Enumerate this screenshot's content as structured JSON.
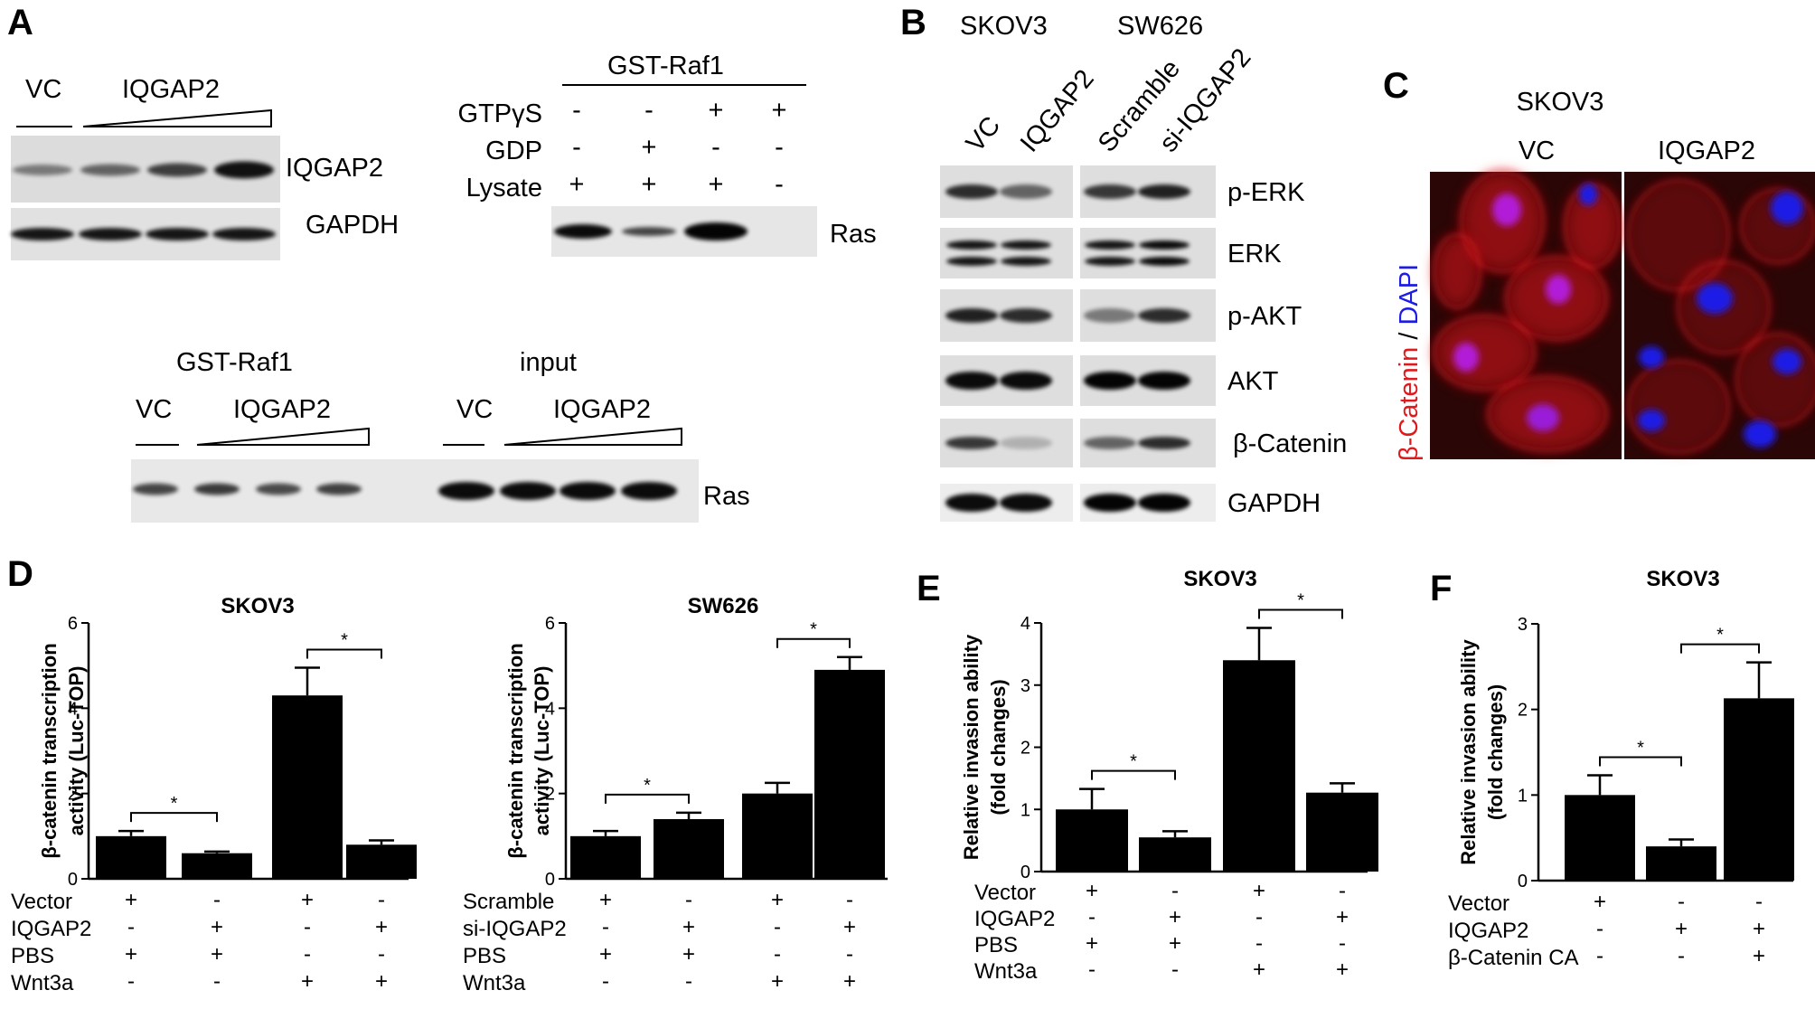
{
  "panel_letters": {
    "A": "A",
    "B": "B",
    "C": "C",
    "D": "D",
    "E": "E",
    "F": "F"
  },
  "panel_a": {
    "blot1": {
      "vc": "VC",
      "iqgap2": "IQGAP2",
      "bands": [
        "IQGAP2",
        "GAPDH"
      ]
    },
    "blot2": {
      "header": "GST-Raf1",
      "rows": [
        {
          "label": "GTPγS",
          "signs": [
            "-",
            "-",
            "+",
            "+"
          ]
        },
        {
          "label": "GDP",
          "signs": [
            "-",
            "+",
            "-",
            "-"
          ]
        },
        {
          "label": "Lysate",
          "signs": [
            "+",
            "+",
            "+",
            "-"
          ]
        }
      ],
      "band": "Ras"
    },
    "blot3": {
      "gst": "GST-Raf1",
      "input": "input",
      "vc": "VC",
      "iqgap2": "IQGAP2",
      "band": "Ras"
    }
  },
  "panel_b": {
    "cell_lines": [
      "SKOV3",
      "SW626"
    ],
    "lanes": [
      "VC",
      "IQGAP2",
      "Scramble",
      "si-IQGAP2"
    ],
    "bands": [
      "p-ERK",
      "ERK",
      "p-AKT",
      "AKT",
      "β-Catenin",
      "GAPDH"
    ]
  },
  "panel_c": {
    "title": "SKOV3",
    "conditions": [
      "VC",
      "IQGAP2"
    ],
    "stain_red": "β-Catenin",
    "stain_sep": " / ",
    "stain_blue": "DAPI",
    "colors": {
      "red": "#e0191c",
      "blue": "#1c1ce6",
      "bg": "#2a0606"
    }
  },
  "chart_data": [
    {
      "panel": "D",
      "type": "bar",
      "title": "SKOV3",
      "ylabel": [
        "β-catenin transcription",
        "activity (Luc-TOP)"
      ],
      "ylim": [
        0,
        6
      ],
      "yticks": [
        0,
        2,
        4,
        6
      ],
      "values": [
        1.0,
        0.6,
        4.3,
        0.8
      ],
      "errors": [
        0.12,
        0.04,
        0.65,
        0.1
      ],
      "sig": [
        [
          0,
          1
        ],
        [
          2,
          3
        ]
      ],
      "conditions": [
        {
          "label": "Vector",
          "signs": [
            "+",
            "-",
            "+",
            "-"
          ]
        },
        {
          "label": "IQGAP2",
          "signs": [
            "-",
            "+",
            "-",
            "+"
          ]
        },
        {
          "label": "PBS",
          "signs": [
            "+",
            "+",
            "-",
            "-"
          ]
        },
        {
          "label": "Wnt3a",
          "signs": [
            "-",
            "-",
            "+",
            "+"
          ]
        }
      ]
    },
    {
      "panel": "D",
      "type": "bar",
      "title": "SW626",
      "ylabel": [
        "β-catenin transcription",
        "activity (Luc-TOP)"
      ],
      "ylim": [
        0,
        6
      ],
      "yticks": [
        0,
        2,
        4,
        6
      ],
      "values": [
        1.0,
        1.4,
        2.0,
        4.9
      ],
      "errors": [
        0.12,
        0.15,
        0.25,
        0.3
      ],
      "sig": [
        [
          0,
          1
        ],
        [
          2,
          3
        ]
      ],
      "conditions": [
        {
          "label": "Scramble",
          "signs": [
            "+",
            "-",
            "+",
            "-"
          ]
        },
        {
          "label": "si-IQGAP2",
          "signs": [
            "-",
            "+",
            "-",
            "+"
          ]
        },
        {
          "label": "PBS",
          "signs": [
            "+",
            "+",
            "-",
            "-"
          ]
        },
        {
          "label": "Wnt3a",
          "signs": [
            "-",
            "-",
            "+",
            "+"
          ]
        }
      ]
    },
    {
      "panel": "E",
      "type": "bar",
      "title": "SKOV3",
      "ylabel": [
        "Relative invasion ability",
        "(fold changes)"
      ],
      "ylim": [
        0,
        4
      ],
      "yticks": [
        0,
        1,
        2,
        3,
        4
      ],
      "values": [
        1.0,
        0.55,
        3.4,
        1.27
      ],
      "errors": [
        0.33,
        0.1,
        0.52,
        0.15
      ],
      "sig": [
        [
          0,
          1
        ],
        [
          2,
          3
        ]
      ],
      "conditions": [
        {
          "label": "Vector",
          "signs": [
            "+",
            "-",
            "+",
            "-"
          ]
        },
        {
          "label": "IQGAP2",
          "signs": [
            "-",
            "+",
            "-",
            "+"
          ]
        },
        {
          "label": "PBS",
          "signs": [
            "+",
            "+",
            "-",
            "-"
          ]
        },
        {
          "label": "Wnt3a",
          "signs": [
            "-",
            "-",
            "+",
            "+"
          ]
        }
      ]
    },
    {
      "panel": "F",
      "type": "bar",
      "title": "SKOV3",
      "ylabel": [
        "Relative invasion ability",
        "(fold changes)"
      ],
      "ylim": [
        0,
        3
      ],
      "yticks": [
        0,
        1,
        2,
        3
      ],
      "values": [
        1.0,
        0.4,
        2.13
      ],
      "errors": [
        0.23,
        0.08,
        0.42
      ],
      "sig": [
        [
          0,
          1
        ],
        [
          1,
          2
        ]
      ],
      "conditions": [
        {
          "label": "Vector",
          "signs": [
            "+",
            "-",
            "-"
          ]
        },
        {
          "label": "IQGAP2",
          "signs": [
            "-",
            "+",
            "+"
          ]
        },
        {
          "label": "β-Catenin CA",
          "signs": [
            "-",
            "-",
            "+"
          ]
        }
      ]
    }
  ]
}
